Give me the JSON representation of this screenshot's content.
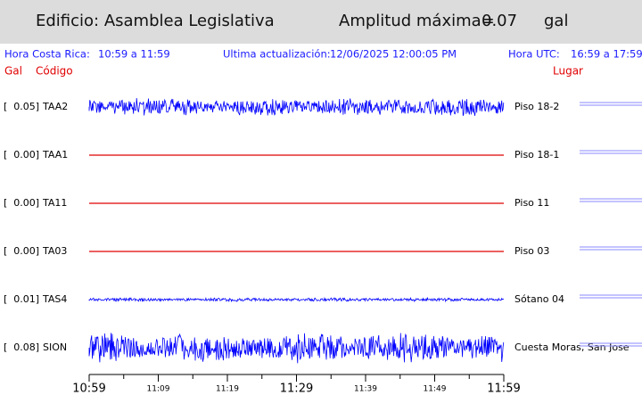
{
  "header": {
    "building": "Edificio: Asamblea Legislativa",
    "amplitude_label": "Amplitud máxima=",
    "amplitude_value": "0.07",
    "unit": "gal"
  },
  "info": {
    "local_label": "Hora Costa Rica:",
    "local_range": "10:59 a 11:59",
    "updated_label": "Ultima actualización:",
    "updated_value": "12/06/2025 12:00:05 PM",
    "utc_label": "Hora UTC:",
    "utc_range": "16:59 a 17:59"
  },
  "columns": {
    "gal": "Gal",
    "code": "Código",
    "place": "Lugar"
  },
  "rows": [
    {
      "gal": "[  0.05]",
      "code": "TAA2",
      "place": "Piso 18-2",
      "color": "#0000ff"
    },
    {
      "gal": "[  0.00]",
      "code": "TAA1",
      "place": "Piso 18-1",
      "color": "#e00000"
    },
    {
      "gal": "[  0.00]",
      "code": "TA11",
      "place": "Piso 11",
      "color": "#e00000"
    },
    {
      "gal": "[  0.00]",
      "code": "TA03",
      "place": "Piso 03",
      "color": "#e00000"
    },
    {
      "gal": "[  0.01]",
      "code": "TAS4",
      "place": "Sótano 04",
      "color": "#0000ff"
    },
    {
      "gal": "[  0.08]",
      "code": "SION",
      "place": "Cuesta Moras, San Jose",
      "color": "#0000ff"
    }
  ],
  "time_axis": {
    "labels": [
      {
        "text": "10:59",
        "major": true
      },
      {
        "text": "11:09",
        "major": false
      },
      {
        "text": "11:19",
        "major": false
      },
      {
        "text": "11:29",
        "major": true
      },
      {
        "text": "11:39",
        "major": false
      },
      {
        "text": "11:49",
        "major": false
      },
      {
        "text": "11:59",
        "major": true
      }
    ]
  }
}
